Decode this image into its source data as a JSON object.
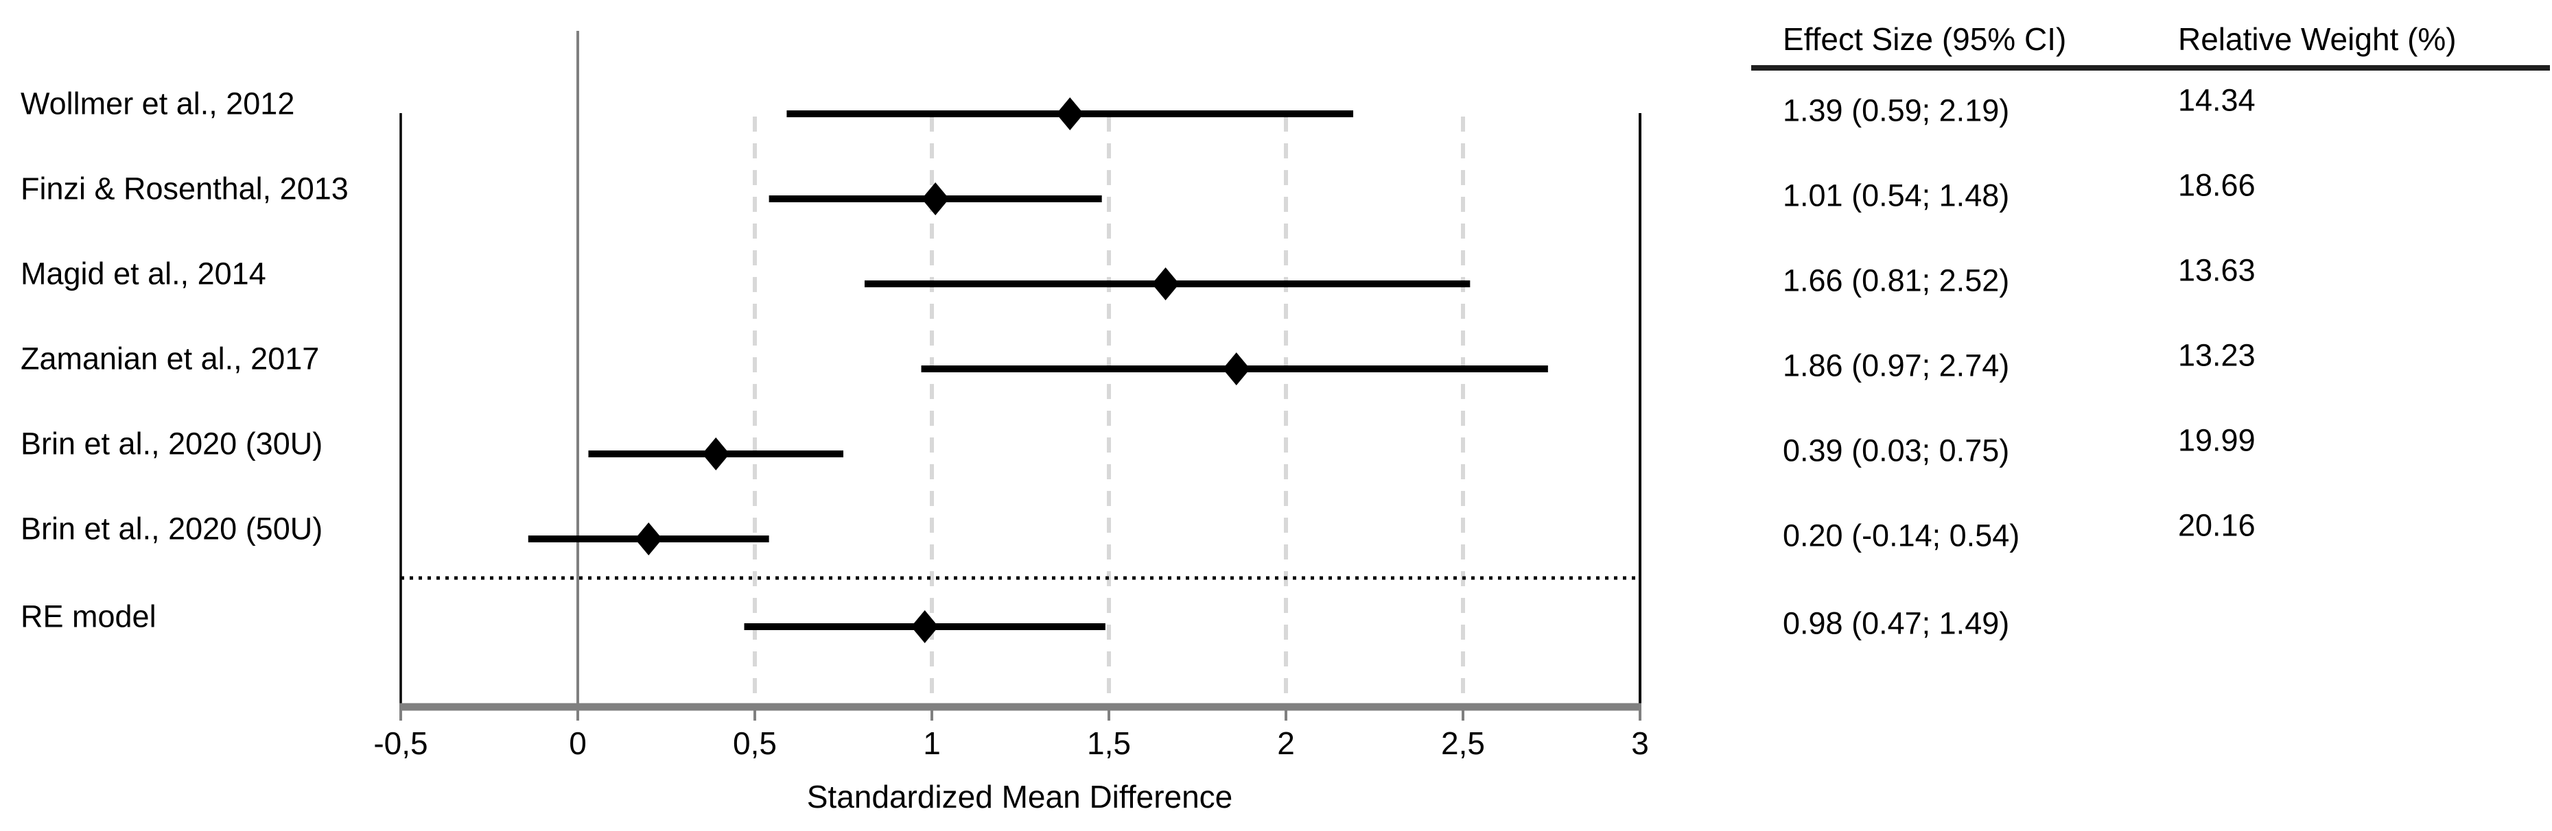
{
  "table": {
    "col1_header": "Effect Size (95% CI)",
    "col2_header": "Relative Weight (%)"
  },
  "chart_data": {
    "type": "forest",
    "title": "",
    "xlabel": "Standardized Mean Difference",
    "x_axis": {
      "min": -0.5,
      "max": 3,
      "tick_values": [
        -0.5,
        0,
        0.5,
        1,
        1.5,
        2,
        2.5,
        3
      ],
      "tick_labels": [
        "-0,5",
        "0",
        "0,5",
        "1",
        "1,5",
        "2",
        "2,5",
        "3"
      ],
      "gridlines_at": [
        0.5,
        1,
        1.5,
        2,
        2.5
      ],
      "zero_line_at": 0,
      "grid": "dashed-vertical"
    },
    "studies": [
      {
        "label": "Wollmer et al., 2012",
        "effect": 1.39,
        "ci_low": 0.59,
        "ci_high": 2.19,
        "effect_label": "1.39 (0.59; 2.19)",
        "weight": 14.34,
        "weight_label": "14.34"
      },
      {
        "label": "Finzi & Rosenthal, 2013",
        "effect": 1.01,
        "ci_low": 0.54,
        "ci_high": 1.48,
        "effect_label": "1.01 (0.54; 1.48)",
        "weight": 18.66,
        "weight_label": "18.66"
      },
      {
        "label": "Magid et al., 2014",
        "effect": 1.66,
        "ci_low": 0.81,
        "ci_high": 2.52,
        "effect_label": "1.66 (0.81; 2.52)",
        "weight": 13.63,
        "weight_label": "13.63"
      },
      {
        "label": "Zamanian et al., 2017",
        "effect": 1.86,
        "ci_low": 0.97,
        "ci_high": 2.74,
        "effect_label": "1.86 (0.97; 2.74)",
        "weight": 13.23,
        "weight_label": "13.23"
      },
      {
        "label": "Brin et al., 2020 (30U)",
        "effect": 0.39,
        "ci_low": 0.03,
        "ci_high": 0.75,
        "effect_label": "0.39 (0.03; 0.75)",
        "weight": 19.99,
        "weight_label": "19.99"
      },
      {
        "label": "Brin et al., 2020 (50U)",
        "effect": 0.2,
        "ci_low": -0.14,
        "ci_high": 0.54,
        "effect_label": "0.20 (-0.14; 0.54)",
        "weight": 20.16,
        "weight_label": "20.16"
      }
    ],
    "summary": {
      "label": "RE model",
      "effect": 0.98,
      "ci_low": 0.47,
      "ci_high": 1.49,
      "effect_label": "0.98 (0.47; 1.49)",
      "weight_label": ""
    },
    "legend": "none"
  },
  "colors": {
    "marker": "#000000",
    "ci_line": "#000000",
    "zero_line": "#808080",
    "axis_line": "#808080",
    "gridline": "#d8d8d8",
    "separator": "#000000",
    "frame": "#000000",
    "header_rule": "#1f1f1f",
    "text": "#000000"
  }
}
